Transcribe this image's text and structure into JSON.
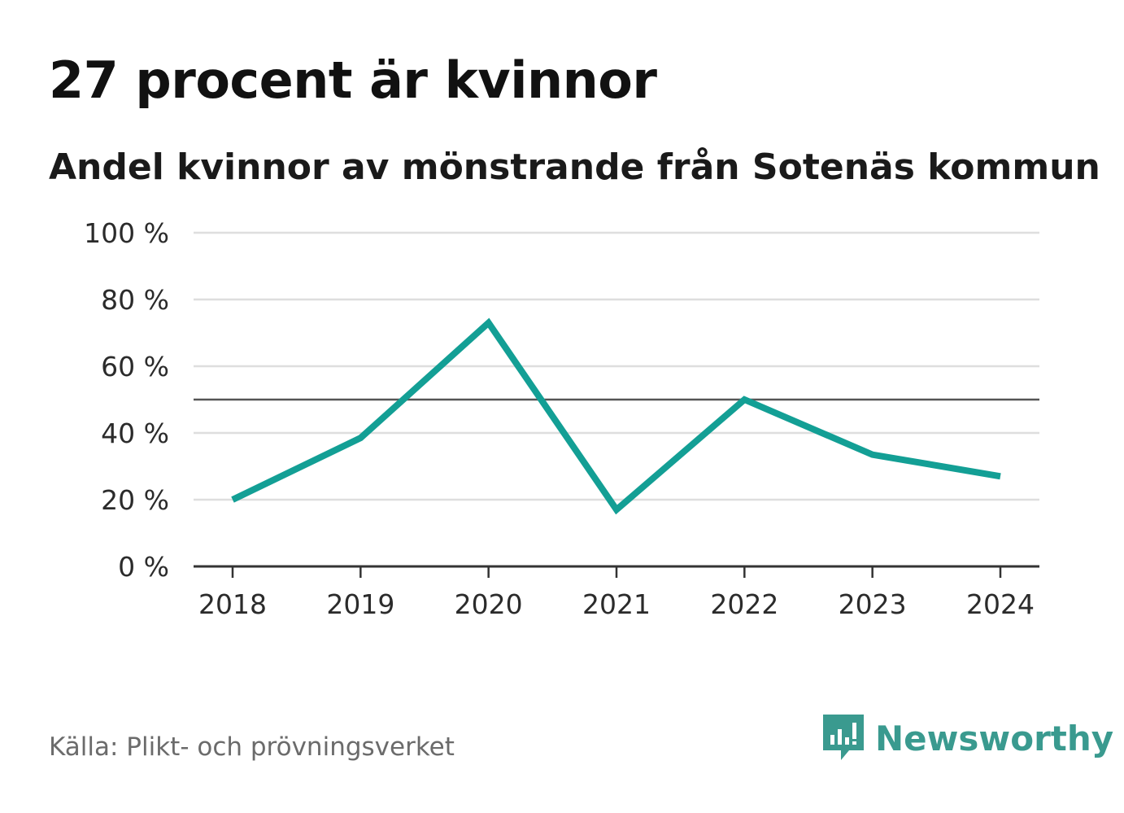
{
  "title": "27 procent är kvinnor",
  "subtitle": "Andel kvinnor av mönstrande från Sotenäs kommun",
  "source": "Källa: Plikt- och prövningsverket",
  "brand": "Newsworthy",
  "colors": {
    "line": "#139f95",
    "reference": "#555555",
    "grid": "#dedede",
    "axis": "#333333",
    "tick_label": "#2b2b2b",
    "brand": "#3a9a8f"
  },
  "chart_data": {
    "type": "line",
    "title": "27 procent är kvinnor",
    "subtitle": "Andel kvinnor av mönstrande från Sotenäs kommun",
    "xlabel": "",
    "ylabel": "",
    "categories": [
      "2018",
      "2019",
      "2020",
      "2021",
      "2022",
      "2023",
      "2024"
    ],
    "series": [
      {
        "name": "Andel kvinnor",
        "values": [
          20,
          38.5,
          73,
          17,
          50,
          33.5,
          27
        ]
      }
    ],
    "reference_line": 50,
    "ylim": [
      0,
      100
    ],
    "yticks": [
      0,
      20,
      40,
      60,
      80,
      100
    ],
    "ytick_labels": [
      "0 %",
      "20 %",
      "40 %",
      "60 %",
      "80 %",
      "100 %"
    ],
    "grid": true,
    "legend": "none"
  }
}
